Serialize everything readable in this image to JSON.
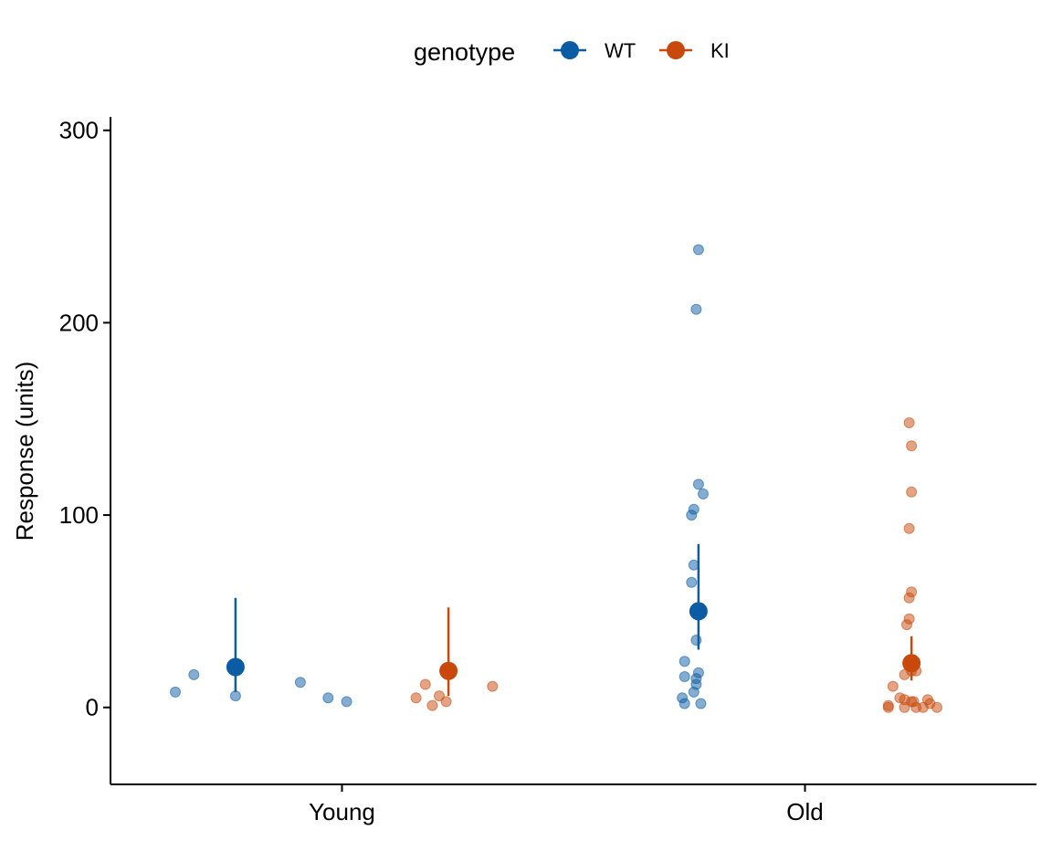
{
  "chart_data": {
    "type": "scatter",
    "title": "",
    "xlabel": "",
    "ylabel": "Response (units)",
    "ylim": [
      -40,
      307
    ],
    "yticks": [
      0,
      100,
      200,
      300
    ],
    "categories": [
      "Young",
      "Old"
    ],
    "legend": {
      "title": "genotype",
      "position": "top"
    },
    "grid": false,
    "series": [
      {
        "name": "WT",
        "color": "#0B5CA4",
        "summary": [
          {
            "category": "Young",
            "mean": 21,
            "lower": 8,
            "upper": 57
          },
          {
            "category": "Old",
            "mean": 50,
            "lower": 30,
            "upper": 85
          }
        ],
        "points": [
          {
            "category": "Young",
            "offset": -0.13,
            "y": 8
          },
          {
            "category": "Young",
            "offset": -0.09,
            "y": 17
          },
          {
            "category": "Young",
            "offset": 0.0,
            "y": 6
          },
          {
            "category": "Young",
            "offset": 0.14,
            "y": 13
          },
          {
            "category": "Young",
            "offset": 0.2,
            "y": 5
          },
          {
            "category": "Young",
            "offset": 0.24,
            "y": 3
          },
          {
            "category": "Old",
            "offset": 0.0,
            "y": 238
          },
          {
            "category": "Old",
            "offset": -0.005,
            "y": 207
          },
          {
            "category": "Old",
            "offset": 0.0,
            "y": 116
          },
          {
            "category": "Old",
            "offset": 0.01,
            "y": 111
          },
          {
            "category": "Old",
            "offset": -0.01,
            "y": 103
          },
          {
            "category": "Old",
            "offset": -0.015,
            "y": 100
          },
          {
            "category": "Old",
            "offset": -0.01,
            "y": 74
          },
          {
            "category": "Old",
            "offset": -0.015,
            "y": 65
          },
          {
            "category": "Old",
            "offset": -0.005,
            "y": 35
          },
          {
            "category": "Old",
            "offset": -0.03,
            "y": 24
          },
          {
            "category": "Old",
            "offset": 0.0,
            "y": 18
          },
          {
            "category": "Old",
            "offset": -0.03,
            "y": 16
          },
          {
            "category": "Old",
            "offset": -0.005,
            "y": 15
          },
          {
            "category": "Old",
            "offset": -0.005,
            "y": 12
          },
          {
            "category": "Old",
            "offset": -0.01,
            "y": 8
          },
          {
            "category": "Old",
            "offset": -0.035,
            "y": 5
          },
          {
            "category": "Old",
            "offset": -0.03,
            "y": 2
          },
          {
            "category": "Old",
            "offset": 0.005,
            "y": 2
          }
        ]
      },
      {
        "name": "KI",
        "color": "#C8490B",
        "summary": [
          {
            "category": "Young",
            "mean": 19,
            "lower": 6,
            "upper": 52
          },
          {
            "category": "Old",
            "mean": 23,
            "lower": 14,
            "upper": 37
          }
        ],
        "points": [
          {
            "category": "Young",
            "offset": -0.07,
            "y": 5
          },
          {
            "category": "Young",
            "offset": -0.05,
            "y": 12
          },
          {
            "category": "Young",
            "offset": -0.035,
            "y": 1
          },
          {
            "category": "Young",
            "offset": -0.02,
            "y": 6
          },
          {
            "category": "Young",
            "offset": -0.005,
            "y": 3
          },
          {
            "category": "Young",
            "offset": 0.095,
            "y": 11
          },
          {
            "category": "Old",
            "offset": -0.005,
            "y": 148
          },
          {
            "category": "Old",
            "offset": 0.0,
            "y": 136
          },
          {
            "category": "Old",
            "offset": 0.0,
            "y": 112
          },
          {
            "category": "Old",
            "offset": -0.005,
            "y": 93
          },
          {
            "category": "Old",
            "offset": 0.0,
            "y": 60
          },
          {
            "category": "Old",
            "offset": -0.005,
            "y": 57
          },
          {
            "category": "Old",
            "offset": -0.005,
            "y": 46
          },
          {
            "category": "Old",
            "offset": -0.01,
            "y": 43
          },
          {
            "category": "Old",
            "offset": 0.0,
            "y": 19
          },
          {
            "category": "Old",
            "offset": 0.01,
            "y": 19
          },
          {
            "category": "Old",
            "offset": -0.015,
            "y": 17
          },
          {
            "category": "Old",
            "offset": -0.04,
            "y": 11
          },
          {
            "category": "Old",
            "offset": -0.025,
            "y": 5
          },
          {
            "category": "Old",
            "offset": -0.015,
            "y": 4
          },
          {
            "category": "Old",
            "offset": 0.0,
            "y": 3
          },
          {
            "category": "Old",
            "offset": 0.005,
            "y": 3
          },
          {
            "category": "Old",
            "offset": 0.035,
            "y": 4
          },
          {
            "category": "Old",
            "offset": 0.04,
            "y": 2
          },
          {
            "category": "Old",
            "offset": -0.05,
            "y": 1
          },
          {
            "category": "Old",
            "offset": -0.015,
            "y": 0
          },
          {
            "category": "Old",
            "offset": 0.01,
            "y": 0
          },
          {
            "category": "Old",
            "offset": 0.025,
            "y": 0
          },
          {
            "category": "Old",
            "offset": 0.055,
            "y": 0
          },
          {
            "category": "Old",
            "offset": -0.05,
            "y": 0
          }
        ]
      }
    ]
  }
}
